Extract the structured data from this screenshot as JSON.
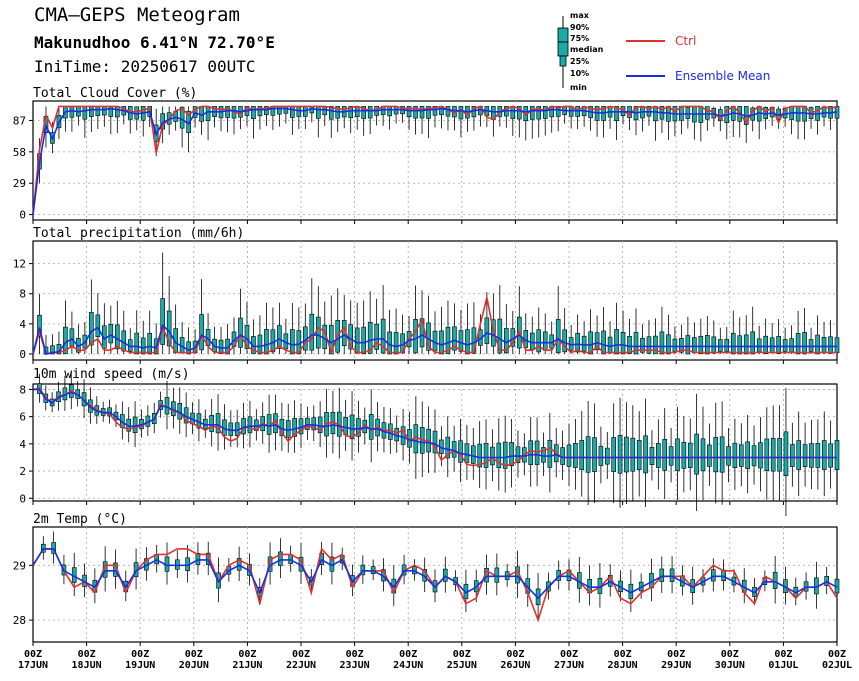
{
  "header": {
    "title": "CMA—GEPS Meteogram",
    "location": "Makunudhoo 6.41°N 72.70°E",
    "initime": "IniTime: 20250617 00UTC"
  },
  "legend": {
    "box_labels": [
      "max",
      "90%",
      "75%",
      "median",
      "25%",
      "10%",
      "min"
    ],
    "ctrl": "Ctrl",
    "mean": "Ensemble Mean",
    "colors": {
      "ctrl": "#e03030",
      "mean": "#1a2ee0",
      "box": "#1aaaa8"
    }
  },
  "x_axis": {
    "ticks": [
      {
        "t": "00Z",
        "d": "17JUN"
      },
      {
        "t": "00Z",
        "d": "18JUN"
      },
      {
        "t": "00Z",
        "d": "19JUN"
      },
      {
        "t": "00Z",
        "d": "20JUN"
      },
      {
        "t": "00Z",
        "d": "21JUN"
      },
      {
        "t": "00Z",
        "d": "22JUN"
      },
      {
        "t": "00Z",
        "d": "23JUN"
      },
      {
        "t": "00Z",
        "d": "24JUN"
      },
      {
        "t": "00Z",
        "d": "25JUN"
      },
      {
        "t": "00Z",
        "d": "26JUN"
      },
      {
        "t": "00Z",
        "d": "27JUN"
      },
      {
        "t": "00Z",
        "d": "28JUN"
      },
      {
        "t": "00Z",
        "d": "29JUN"
      },
      {
        "t": "00Z",
        "d": "30JUN"
      },
      {
        "t": "00Z",
        "d": "01JUL"
      },
      {
        "t": "00Z",
        "d": "02JUL"
      }
    ]
  },
  "chart_data": [
    {
      "type": "box",
      "title": "Total Cloud Cover (%)",
      "ylim": [
        -5,
        105
      ],
      "yticks": [
        0,
        29,
        58,
        87
      ],
      "grid": true,
      "ctrl": [
        0,
        60,
        92,
        80,
        100,
        100,
        100,
        100,
        100,
        100,
        100,
        100,
        100,
        100,
        98,
        95,
        95,
        97,
        98,
        57,
        83,
        88,
        96,
        98,
        92,
        97,
        100,
        100,
        98,
        97,
        98,
        95,
        93,
        99,
        97,
        98,
        98,
        100,
        100,
        100,
        100,
        100,
        100,
        100,
        100,
        100,
        99,
        98,
        97,
        99,
        100,
        98,
        96,
        97,
        100,
        100,
        100,
        98,
        98,
        98,
        97,
        98,
        99,
        100,
        97,
        94,
        97,
        92,
        98,
        100,
        90,
        88,
        95,
        98,
        100,
        98,
        92,
        97,
        98,
        96,
        100,
        99,
        100,
        100,
        96,
        100,
        98,
        97,
        98,
        100,
        99,
        97,
        92,
        99,
        100,
        98,
        100,
        97,
        100,
        95,
        100,
        100,
        100,
        100,
        96,
        95,
        88,
        96,
        100,
        94,
        85,
        96,
        100,
        95,
        99,
        85,
        98,
        100,
        100,
        100,
        94,
        96,
        100,
        98,
        100
      ],
      "mean": [
        0,
        48,
        82,
        70,
        85,
        95,
        96,
        95,
        96,
        97,
        97,
        97,
        98,
        97,
        96,
        94,
        93,
        94,
        95,
        74,
        85,
        88,
        90,
        88,
        84,
        94,
        92,
        95,
        95,
        95,
        96,
        96,
        95,
        96,
        97,
        97,
        97,
        98,
        98,
        98,
        97,
        96,
        96,
        98,
        97,
        97,
        96,
        95,
        95,
        96,
        96,
        96,
        96,
        96,
        97,
        97,
        97,
        97,
        96,
        96,
        96,
        97,
        97,
        98,
        97,
        96,
        96,
        95,
        96,
        97,
        96,
        95,
        95,
        96,
        96,
        96,
        95,
        96,
        96,
        96,
        97,
        97,
        96,
        96,
        96,
        96,
        95,
        94,
        94,
        95,
        95,
        95,
        95,
        94,
        95,
        95,
        95,
        94,
        94,
        93,
        93,
        93,
        93,
        93,
        93,
        93,
        91,
        92,
        94,
        93,
        91,
        92,
        94,
        93,
        94,
        92,
        93,
        94,
        94,
        94,
        93,
        93,
        94,
        94,
        95
      ]
    },
    {
      "type": "box",
      "title": "Total precipitation (mm/6h)",
      "ylim": [
        -0.8,
        15
      ],
      "yticks": [
        0,
        4,
        8,
        12
      ],
      "grid": true,
      "ctrl": [
        0,
        3,
        0,
        0.2,
        0.2,
        0.5,
        1,
        0.5,
        0.5,
        1.5,
        2,
        0.5,
        0.5,
        1,
        0.5,
        0.2,
        0.2,
        0.2,
        0.2,
        0.2,
        3.5,
        1.5,
        0.2,
        0.2,
        0.2,
        0.2,
        2.5,
        1,
        0.2,
        0.2,
        0.2,
        1,
        2.5,
        1,
        0.5,
        0.2,
        0.2,
        0.5,
        1,
        0.5,
        0.2,
        0.2,
        1.5,
        2,
        3.5,
        3,
        0.2,
        2.5,
        3.5,
        1,
        0.2,
        0.2,
        0.5,
        1.5,
        1,
        0.2,
        0.2,
        0.2,
        2,
        3,
        4.5,
        1,
        0.2,
        0.2,
        0.5,
        1,
        0.5,
        0.2,
        0.2,
        4,
        7.5,
        3,
        0.5,
        0.5,
        1.5,
        3,
        0.5,
        0.5,
        1,
        0.5,
        0.5,
        2,
        1,
        0.2,
        0.5,
        0.2,
        0.2,
        1,
        0.2,
        0.2,
        0.2,
        0.2,
        0.2,
        0.5,
        0.5,
        0.5,
        0.5,
        0.2,
        0.2,
        0.2,
        0.5,
        0.5,
        0.2,
        0.2,
        0.2,
        0.2,
        0.2,
        0.2,
        0.2,
        0.2,
        0.2,
        0.2,
        0.2,
        0.2,
        0.2,
        0.2,
        0.2,
        0.2,
        0.2,
        0.2,
        0.2,
        0.2,
        0.2,
        0.2,
        0.2
      ],
      "mean": [
        0,
        3.5,
        0,
        0.2,
        0.3,
        1.5,
        2,
        1,
        1.5,
        3,
        3.5,
        2,
        2.5,
        2,
        1.5,
        1,
        1,
        0.8,
        1,
        0.8,
        3.8,
        3,
        1.5,
        1,
        0.5,
        0.8,
        2.5,
        2,
        1,
        0.8,
        0.8,
        1.8,
        2.5,
        2,
        1,
        1,
        1.2,
        1.5,
        2,
        1.5,
        1.2,
        1.3,
        1.8,
        2.5,
        2.5,
        2,
        1.5,
        2,
        2.5,
        2,
        1.5,
        1.5,
        1.8,
        2,
        2,
        1.2,
        1,
        1.2,
        1.8,
        2,
        2.5,
        2,
        1.5,
        1.2,
        1.5,
        1.8,
        1.5,
        1.2,
        1.5,
        2,
        2.8,
        2.5,
        2,
        1.5,
        2,
        2.5,
        1.8,
        1.5,
        1.5,
        1.5,
        1.5,
        2,
        1.5,
        1.2,
        1.3,
        1.2,
        1.2,
        1.5,
        1.2,
        1,
        1.2,
        1.2,
        1,
        1,
        1,
        1,
        1,
        1,
        1,
        1,
        1,
        1,
        1,
        1,
        1,
        1,
        1,
        1,
        1,
        1,
        1,
        1,
        1,
        1,
        1,
        1,
        1,
        1,
        1,
        1,
        1,
        1,
        1,
        1,
        1
      ]
    },
    {
      "type": "box",
      "title": "10m wind speed (m/s)",
      "ylim": [
        -0.2,
        8.4
      ],
      "yticks": [
        0,
        2,
        4,
        6,
        8
      ],
      "grid": true,
      "ctrl": [
        8,
        8.1,
        7.4,
        7,
        7.5,
        7.6,
        7.9,
        7.6,
        7.2,
        6.8,
        6.5,
        6.3,
        6.2,
        5.6,
        5.2,
        5.1,
        5.2,
        5.3,
        5.6,
        5.8,
        6.9,
        6.7,
        6.4,
        6.3,
        5.7,
        5.5,
        5.3,
        5,
        5.3,
        5.2,
        4.5,
        4.2,
        4.4,
        5.2,
        5.2,
        5,
        5.5,
        5.3,
        5.7,
        4.8,
        4.2,
        4.7,
        5,
        5.3,
        5.2,
        5,
        5.5,
        5.6,
        5.4,
        4.6,
        4.5,
        4.8,
        5.4,
        5,
        5.2,
        5,
        5,
        4.8,
        5,
        4.2,
        4.5,
        4.3,
        4.2,
        3.8,
        2.8,
        3.2,
        3.5,
        3.2,
        2.5,
        2.4,
        2.5,
        2.6,
        3,
        2.6,
        2.4,
        2.5,
        2.7,
        3.2,
        3.5,
        3.4,
        3.5,
        3.7,
        3.3,
        3,
        3,
        3,
        3,
        3,
        3,
        3,
        3,
        3,
        3,
        3,
        3,
        3,
        3,
        3,
        3,
        3,
        3,
        3,
        3,
        3,
        3,
        3,
        3,
        3,
        3,
        3,
        3,
        3,
        3,
        3,
        3,
        3,
        3,
        3,
        3,
        3,
        3,
        3,
        3,
        3,
        3,
        3
      ],
      "mean": [
        8,
        8,
        7.3,
        7,
        7.4,
        7.6,
        7.8,
        7.6,
        7.2,
        6.7,
        6.4,
        6.3,
        6.3,
        6,
        5.6,
        5.3,
        5.3,
        5.4,
        5.6,
        5.8,
        6.8,
        6.7,
        6.5,
        6.3,
        6,
        5.8,
        5.6,
        5.4,
        5.4,
        5.4,
        5.1,
        5,
        5,
        5.2,
        5.3,
        5.3,
        5.4,
        5.3,
        5.4,
        5.1,
        5,
        5.1,
        5.2,
        5.4,
        5.4,
        5.3,
        5.3,
        5.4,
        5.3,
        5.2,
        5.1,
        5.1,
        5.2,
        5.1,
        5.1,
        4.9,
        4.8,
        4.6,
        4.5,
        4.3,
        4.2,
        4.1,
        4.1,
        4,
        3.7,
        3.6,
        3.5,
        3.3,
        3.2,
        3.1,
        3,
        3,
        3,
        3,
        3,
        3.1,
        3.1,
        3.1,
        3.2,
        3.2,
        3.1,
        3.1,
        3.2,
        3,
        3,
        3,
        3,
        3,
        3,
        3,
        3,
        3,
        3,
        3,
        3,
        3,
        3,
        3,
        3,
        3,
        3,
        3,
        3,
        3,
        3,
        3,
        3,
        3,
        3,
        3,
        3,
        3,
        3,
        3,
        3,
        3,
        3,
        3,
        3,
        3,
        3,
        3,
        3,
        3,
        3,
        3,
        3
      ]
    },
    {
      "type": "box",
      "title": "2m Temp (°C)",
      "ylim": [
        27.6,
        29.7
      ],
      "yticks": [
        28,
        29
      ],
      "grid": true,
      "ctrl": [
        29,
        29.3,
        29.3,
        28.9,
        28.6,
        28.7,
        28.5,
        29,
        29,
        28.5,
        28.9,
        29.1,
        29.2,
        29.2,
        29.3,
        29.3,
        29.2,
        29.2,
        28.7,
        29,
        29.1,
        29,
        28.3,
        29.1,
        29.2,
        29.2,
        29.1,
        28.5,
        29.3,
        29.1,
        29.2,
        28.6,
        28.9,
        28.9,
        28.9,
        28.5,
        28.9,
        29,
        28.9,
        28.6,
        28.8,
        28.7,
        28.3,
        28.4,
        28.9,
        28.8,
        28.8,
        28.9,
        28.5,
        28,
        28.6,
        28.8,
        28.9,
        28.7,
        28.5,
        28.6,
        28.8,
        28.4,
        28.3,
        28.5,
        28.6,
        28.8,
        28.8,
        28.8,
        28.6,
        28.8,
        29,
        28.9,
        28.9,
        28.5,
        28.3,
        28.8,
        28.7,
        28.6,
        28.4,
        28.6,
        28.6,
        28.7,
        28.4
      ],
      "mean": [
        29,
        29.3,
        29.3,
        28.9,
        28.8,
        28.7,
        28.6,
        28.9,
        28.9,
        28.6,
        28.9,
        29,
        29.1,
        29,
        29,
        29,
        29.1,
        29.1,
        28.7,
        28.9,
        29,
        28.9,
        28.5,
        29,
        29.1,
        29.1,
        29,
        28.7,
        29.1,
        29,
        29.1,
        28.7,
        28.9,
        28.9,
        28.8,
        28.6,
        28.9,
        28.9,
        28.8,
        28.6,
        28.8,
        28.7,
        28.5,
        28.6,
        28.8,
        28.8,
        28.8,
        28.8,
        28.6,
        28.4,
        28.6,
        28.8,
        28.8,
        28.7,
        28.6,
        28.6,
        28.7,
        28.6,
        28.5,
        28.6,
        28.7,
        28.8,
        28.8,
        28.7,
        28.6,
        28.7,
        28.8,
        28.8,
        28.7,
        28.6,
        28.5,
        28.7,
        28.7,
        28.6,
        28.5,
        28.6,
        28.6,
        28.7,
        28.6
      ]
    }
  ]
}
